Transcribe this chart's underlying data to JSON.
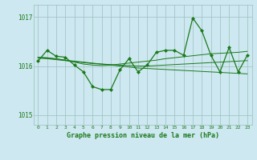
{
  "title": "Graphe pression niveau de la mer (hPa)",
  "hours": [
    0,
    1,
    2,
    3,
    4,
    5,
    6,
    7,
    8,
    9,
    10,
    11,
    12,
    13,
    14,
    15,
    16,
    17,
    18,
    19,
    20,
    21,
    22,
    23
  ],
  "main_line": [
    1016.1,
    1016.32,
    1016.2,
    1016.18,
    1016.02,
    1015.88,
    1015.58,
    1015.52,
    1015.52,
    1015.92,
    1016.15,
    1015.88,
    1016.02,
    1016.28,
    1016.32,
    1016.32,
    1016.22,
    1016.98,
    1016.72,
    1016.22,
    1015.88,
    1016.38,
    1015.88,
    1016.22
  ],
  "trend_line1": [
    1016.18,
    1016.16,
    1016.14,
    1016.12,
    1016.1,
    1016.08,
    1016.06,
    1016.04,
    1016.02,
    1016.0,
    1015.98,
    1015.96,
    1015.95,
    1015.94,
    1015.93,
    1015.92,
    1015.91,
    1015.9,
    1015.89,
    1015.88,
    1015.87,
    1015.86,
    1015.85,
    1015.84
  ],
  "trend_line2": [
    1016.18,
    1016.17,
    1016.15,
    1016.12,
    1016.08,
    1016.04,
    1016.02,
    1016.01,
    1016.02,
    1016.04,
    1016.06,
    1016.08,
    1016.1,
    1016.12,
    1016.15,
    1016.17,
    1016.19,
    1016.21,
    1016.23,
    1016.25,
    1016.26,
    1016.27,
    1016.28,
    1016.3
  ],
  "trend_line3": [
    1016.16,
    1016.15,
    1016.13,
    1016.11,
    1016.09,
    1016.07,
    1016.05,
    1016.04,
    1016.03,
    1016.02,
    1016.01,
    1016.0,
    1016.0,
    1016.01,
    1016.02,
    1016.03,
    1016.04,
    1016.05,
    1016.06,
    1016.07,
    1016.08,
    1016.09,
    1016.1,
    1016.11
  ],
  "line_color": "#1a7a1a",
  "bg_color": "#cde8f0",
  "grid_color": "#9bbfbf",
  "ylim": [
    1014.8,
    1017.25
  ],
  "yticks": [
    1015,
    1016,
    1017
  ],
  "xlim": [
    -0.5,
    23.5
  ]
}
